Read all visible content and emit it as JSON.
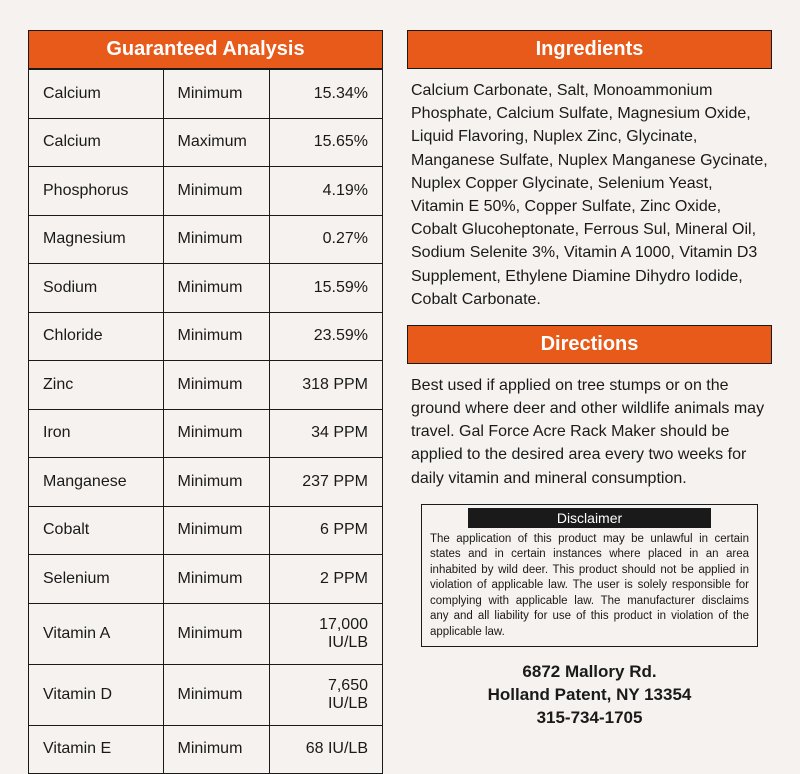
{
  "colors": {
    "accent": "#e85a1a",
    "text": "#1a1a1a",
    "bg": "#f5f2ef",
    "header_text": "#ffffff",
    "border": "#1a1a1a",
    "disclaimer_bg": "#1a1a1a"
  },
  "analysis": {
    "title": "Guaranteed Analysis",
    "rows": [
      {
        "name": "Calcium",
        "type": "Minimum",
        "value": "15.34%"
      },
      {
        "name": "Calcium",
        "type": "Maximum",
        "value": "15.65%"
      },
      {
        "name": "Phosphorus",
        "type": "Minimum",
        "value": "4.19%"
      },
      {
        "name": "Magnesium",
        "type": "Minimum",
        "value": "0.27%"
      },
      {
        "name": "Sodium",
        "type": "Minimum",
        "value": "15.59%"
      },
      {
        "name": "Chloride",
        "type": "Minimum",
        "value": "23.59%"
      },
      {
        "name": "Zinc",
        "type": "Minimum",
        "value": "318 PPM"
      },
      {
        "name": "Iron",
        "type": "Minimum",
        "value": "34 PPM"
      },
      {
        "name": "Manganese",
        "type": "Minimum",
        "value": "237 PPM"
      },
      {
        "name": "Cobalt",
        "type": "Minimum",
        "value": "6 PPM"
      },
      {
        "name": "Selenium",
        "type": "Minimum",
        "value": "2 PPM"
      },
      {
        "name": "Vitamin A",
        "type": "Minimum",
        "value": "17,000 IU/LB"
      },
      {
        "name": "Vitamin D",
        "type": "Minimum",
        "value": "7,650 IU/LB"
      },
      {
        "name": "Vitamin E",
        "type": "Minimum",
        "value": "68 IU/LB"
      }
    ]
  },
  "ingredients": {
    "title": "Ingredients",
    "text": "Calcium Carbonate, Salt, Monoammonium Phosphate, Calcium Sulfate, Magnesium Oxide, Liquid Flavoring, Nuplex Zinc, Glycinate, Manganese Sulfate, Nuplex Manganese Gycinate, Nuplex Copper Glycinate, Selenium Yeast, Vitamin E 50%, Copper Sulfate, Zinc Oxide, Cobalt Glucoheptonate, Ferrous Sul, Mineral Oil, Sodium Selenite 3%, Vitamin A 1000, Vitamin D3 Supplement, Ethylene Diamine Dihydro Iodide, Cobalt Carbonate."
  },
  "directions": {
    "title": "Directions",
    "text": "Best used if applied on tree stumps or on the ground where deer and other wildlife animals may travel. Gal Force Acre Rack Maker should be applied to the desired area every two weeks for daily vitamin and mineral consumption."
  },
  "disclaimer": {
    "title": "Disclaimer",
    "text": "The application of this product may be unlawful in certain states and in certain instances where placed in an area inhabited by wild deer. This product should not be applied in violation of applicable law. The user is solely responsible for complying with applicable law. The manufacturer disclaims any and all liability for use of this product in violation of the applicable law."
  },
  "address": {
    "line1": "6872 Mallory Rd.",
    "line2": "Holland Patent, NY 13354",
    "line3": "315-734-1705"
  }
}
